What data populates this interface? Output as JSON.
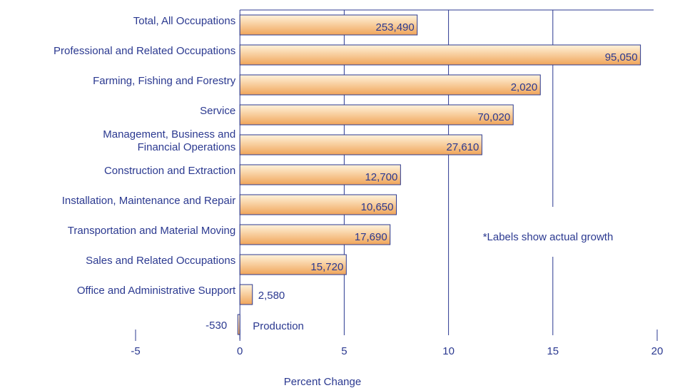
{
  "chart_data": {
    "type": "bar",
    "orientation": "horizontal",
    "x_label": "Percent Change",
    "annotation": "*Labels show actual growth",
    "categories": [
      "Total, All Occupations",
      "Professional and Related Occupations",
      "Farming, Fishing and Forestry",
      "Service",
      "Management, Business and\nFinancial Operations",
      "Construction and Extraction",
      "Installation, Maintenance and Repair",
      "Transportation and Material Moving",
      "Sales and Related Occupations",
      "Office and Administrative Support",
      "Production"
    ],
    "values": [
      8.5,
      19.2,
      14.4,
      13.1,
      11.6,
      7.7,
      7.5,
      7.2,
      5.1,
      0.6,
      -0.1
    ],
    "growth_labels": [
      "253,490",
      "95,050",
      "2,020",
      "70,020",
      "27,610",
      "12,700",
      "10,650",
      "17,690",
      "15,720",
      "2,580",
      "-530"
    ],
    "color": "#f2ad62",
    "xlim": [
      -5,
      20
    ],
    "xticks": [
      -5,
      0,
      5,
      10,
      15,
      20
    ],
    "grid": true
  }
}
